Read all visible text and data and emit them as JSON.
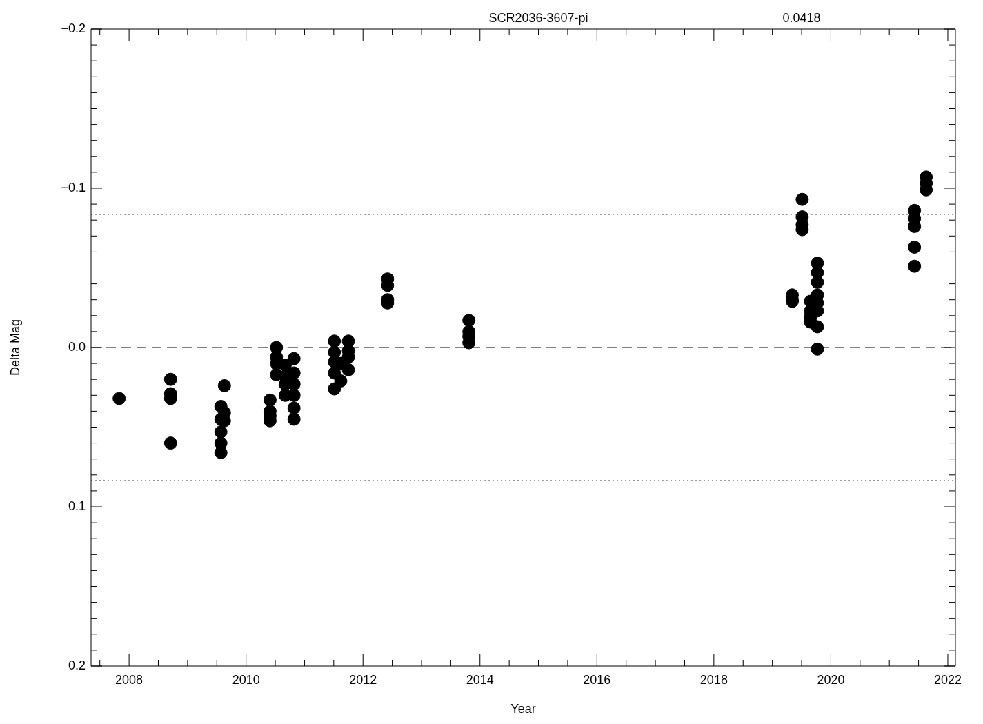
{
  "chart_data": {
    "type": "scatter",
    "title": "SCR2036-3607-pi",
    "annotations": [
      "0.0418"
    ],
    "xlabel": "Year",
    "ylabel": "Delta Mag",
    "xlim": [
      2007.35,
      2022.13
    ],
    "ylim": [
      0.2,
      -0.2
    ],
    "xticks": [
      {
        "value": 2007.5,
        "label": null
      },
      2008,
      {
        "value": 2008.5,
        "label": null
      },
      {
        "value": 2009,
        "label": null
      },
      {
        "value": 2009.5,
        "label": null
      },
      2010,
      {
        "value": 2010.5,
        "label": null
      },
      {
        "value": 2011,
        "label": null
      },
      {
        "value": 2011.5,
        "label": null
      },
      2012,
      {
        "value": 2012.5,
        "label": null
      },
      {
        "value": 2013,
        "label": null
      },
      {
        "value": 2013.5,
        "label": null
      },
      2014,
      {
        "value": 2014.5,
        "label": null
      },
      {
        "value": 2015,
        "label": null
      },
      {
        "value": 2015.5,
        "label": null
      },
      2016,
      {
        "value": 2016.5,
        "label": null
      },
      {
        "value": 2017,
        "label": null
      },
      {
        "value": 2017.5,
        "label": null
      },
      2018,
      {
        "value": 2018.5,
        "label": null
      },
      {
        "value": 2019,
        "label": null
      },
      {
        "value": 2019.5,
        "label": null
      },
      2020,
      {
        "value": 2020.5,
        "label": null
      },
      {
        "value": 2021,
        "label": null
      },
      {
        "value": 2021.5,
        "label": null
      },
      2022
    ],
    "yticks": [
      {
        "value": -0.2,
        "label": "−0.2"
      },
      {
        "value": -0.19,
        "label": null
      },
      {
        "value": -0.18,
        "label": null
      },
      {
        "value": -0.17,
        "label": null
      },
      {
        "value": -0.16,
        "label": null
      },
      {
        "value": -0.15,
        "label": null
      },
      {
        "value": -0.14,
        "label": null
      },
      {
        "value": -0.13,
        "label": null
      },
      {
        "value": -0.12,
        "label": null
      },
      {
        "value": -0.11,
        "label": null
      },
      {
        "value": -0.1,
        "label": "−0.1"
      },
      {
        "value": -0.09,
        "label": null
      },
      {
        "value": -0.08,
        "label": null
      },
      {
        "value": -0.07,
        "label": null
      },
      {
        "value": -0.06,
        "label": null
      },
      {
        "value": -0.05,
        "label": null
      },
      {
        "value": -0.04,
        "label": null
      },
      {
        "value": -0.03,
        "label": null
      },
      {
        "value": -0.02,
        "label": null
      },
      {
        "value": -0.01,
        "label": null
      },
      {
        "value": 0,
        "label": "0.0"
      },
      {
        "value": 0.01,
        "label": null
      },
      {
        "value": 0.02,
        "label": null
      },
      {
        "value": 0.03,
        "label": null
      },
      {
        "value": 0.04,
        "label": null
      },
      {
        "value": 0.05,
        "label": null
      },
      {
        "value": 0.06,
        "label": null
      },
      {
        "value": 0.07,
        "label": null
      },
      {
        "value": 0.08,
        "label": null
      },
      {
        "value": 0.09,
        "label": null
      },
      {
        "value": 0.1,
        "label": "0.1"
      },
      {
        "value": 0.11,
        "label": null
      },
      {
        "value": 0.12,
        "label": null
      },
      {
        "value": 0.13,
        "label": null
      },
      {
        "value": 0.14,
        "label": null
      },
      {
        "value": 0.15,
        "label": null
      },
      {
        "value": 0.16,
        "label": null
      },
      {
        "value": 0.17,
        "label": null
      },
      {
        "value": 0.18,
        "label": null
      },
      {
        "value": 0.19,
        "label": null
      },
      {
        "value": 0.2,
        "label": "0.2"
      }
    ],
    "grid": false,
    "legend": false,
    "marker": "circle",
    "ref_lines": [
      {
        "axis": "y",
        "value": -0.0836,
        "line_style": "dotted",
        "color": "#000000"
      },
      {
        "axis": "y",
        "value": 0,
        "line_style": "dashed",
        "color": "#000000"
      },
      {
        "axis": "y",
        "value": 0.0836,
        "line_style": "dotted",
        "color": "#000000"
      }
    ],
    "series": [
      {
        "color": "#000000",
        "x": [
          2007.83,
          2008.71,
          2008.71,
          2008.71,
          2008.71,
          2009.57,
          2009.57,
          2009.57,
          2009.57,
          2009.57,
          2009.63,
          2009.63,
          2009.63,
          2010.41,
          2010.41,
          2010.41,
          2010.41,
          2010.52,
          2010.52,
          2010.52,
          2010.52,
          2010.67,
          2010.67,
          2010.67,
          2010.67,
          2010.82,
          2010.82,
          2010.82,
          2010.82,
          2010.82,
          2010.82,
          2011.51,
          2011.51,
          2011.51,
          2011.51,
          2011.51,
          2011.62,
          2011.62,
          2011.75,
          2011.75,
          2011.75,
          2011.75,
          2012.42,
          2012.42,
          2012.42,
          2012.42,
          2013.81,
          2013.81,
          2013.81,
          2013.81,
          2019.34,
          2019.34,
          2019.34,
          2019.51,
          2019.51,
          2019.51,
          2019.51,
          2019.65,
          2019.65,
          2019.65,
          2019.65,
          2019.77,
          2019.77,
          2019.77,
          2019.77,
          2019.77,
          2019.77,
          2019.77,
          2019.77,
          2021.43,
          2021.43,
          2021.43,
          2021.43,
          2021.43,
          2021.63,
          2021.63,
          2021.63
        ],
        "values": [
          0.032,
          0.02,
          0.029,
          0.032,
          0.06,
          0.037,
          0.045,
          0.053,
          0.06,
          0.066,
          0.024,
          0.041,
          0.046,
          0.033,
          0.04,
          0.043,
          0.046,
          0.0,
          0.006,
          0.01,
          0.017,
          0.011,
          0.018,
          0.023,
          0.03,
          0.007,
          0.016,
          0.023,
          0.03,
          0.038,
          0.045,
          -0.004,
          0.003,
          0.009,
          0.016,
          0.026,
          0.01,
          0.021,
          -0.004,
          0.002,
          0.006,
          0.014,
          -0.043,
          -0.039,
          -0.03,
          -0.028,
          -0.017,
          -0.01,
          -0.007,
          -0.003,
          -0.033,
          -0.03,
          -0.029,
          -0.093,
          -0.082,
          -0.077,
          -0.074,
          -0.029,
          -0.023,
          -0.019,
          -0.016,
          -0.053,
          -0.047,
          -0.041,
          -0.033,
          -0.028,
          -0.023,
          -0.013,
          0.001,
          -0.086,
          -0.081,
          -0.076,
          -0.063,
          -0.051,
          -0.107,
          -0.103,
          -0.099
        ]
      }
    ]
  }
}
